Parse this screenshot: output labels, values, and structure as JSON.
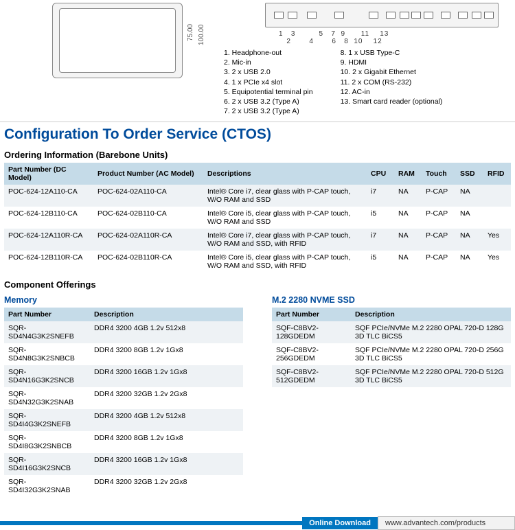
{
  "dimensions": {
    "d1": "75.00",
    "d2": "100.00"
  },
  "portNumbers": {
    "row1": "1   3         5   7  9      11    13",
    "row2": "   2       4       6   8  10    12"
  },
  "portsLeft": [
    "1. Headphone-out",
    "2. Mic-in",
    "3. 2 x USB 2.0",
    "4. 1 x PCIe x4 slot",
    "5. Equipotential terminal pin",
    "6. 2 x USB 3.2 (Type A)",
    "7. 2 x USB 3.2 (Type A)"
  ],
  "portsRight": [
    "8. 1 x USB Type-C",
    "9. HDMI",
    "10. 2 x Gigabit Ethernet",
    "11. 2 x COM (RS-232)",
    "12. AC-in",
    "13. Smart card reader (optional)"
  ],
  "ctosTitle": "Configuration To Order Service (CTOS)",
  "orderingInfoTitle": "Ordering Information (Barebone Units)",
  "mainTable": {
    "headers": [
      "Part Number (DC Model)",
      "Product Number (AC Model)",
      "Descriptions",
      "CPU",
      "RAM",
      "Touch",
      "SSD",
      "RFID"
    ],
    "rows": [
      [
        "POC-624-12A110-CA",
        "POC-624-02A110-CA",
        "Intel® Core i7, clear glass with P-CAP touch, W/O RAM and SSD",
        "i7",
        "NA",
        "P-CAP",
        "NA",
        ""
      ],
      [
        "POC-624-12B110-CA",
        "POC-624-02B110-CA",
        "Intel® Core i5, clear glass with P-CAP touch, W/O RAM and SSD",
        "i5",
        "NA",
        "P-CAP",
        "NA",
        ""
      ],
      [
        "POC-624-12A110R-CA",
        "POC-624-02A110R-CA",
        "Intel® Core i7, clear glass with P-CAP touch, W/O RAM and SSD, with RFID",
        "i7",
        "NA",
        "P-CAP",
        "NA",
        "Yes"
      ],
      [
        "POC-624-12B110R-CA",
        "POC-624-02B110R-CA",
        "Intel® Core i5, clear glass with P-CAP touch, W/O RAM and SSD, with RFID",
        "i5",
        "NA",
        "P-CAP",
        "NA",
        "Yes"
      ]
    ]
  },
  "componentOfferingsTitle": "Component Offerings",
  "memoryTitle": "Memory",
  "memoryTable": {
    "headers": [
      "Part Number",
      "Description"
    ],
    "rows": [
      [
        "SQR-SD4N4G3K2SNEFB",
        "DDR4 3200 4GB 1.2v 512x8"
      ],
      [
        "SQR-SD4N8G3K2SNBCB",
        "DDR4 3200 8GB 1.2v 1Gx8"
      ],
      [
        "SQR-SD4N16G3K2SNCB",
        "DDR4 3200 16GB 1.2v 1Gx8"
      ],
      [
        "SQR-SD4N32G3K2SNAB",
        "DDR4 3200 32GB 1.2v 2Gx8"
      ],
      [
        "SQR-SD4I4G3K2SNEFB",
        "DDR4 3200 4GB 1.2v 512x8"
      ],
      [
        "SQR-SD4I8G3K2SNBCB",
        "DDR4 3200 8GB 1.2v 1Gx8"
      ],
      [
        "SQR-SD4I16G3K2SNCB",
        "DDR4 3200 16GB 1.2v 1Gx8"
      ],
      [
        "SQR-SD4I32G3K2SNAB",
        "DDR4 3200 32GB 1.2v 2Gx8"
      ]
    ]
  },
  "ssdTitle": "M.2 2280 NVME SSD",
  "ssdTable": {
    "headers": [
      "Part Number",
      "Description"
    ],
    "rows": [
      [
        "SQF-C8BV2-128GDEDM",
        "SQF PCIe/NVMe M.2 2280 OPAL 720-D 128G 3D TLC BiCS5"
      ],
      [
        "SQF-C8BV2-256GDEDM",
        "SQF PCIe/NVMe M.2 2280 OPAL 720-D 256G 3D TLC BiCS5"
      ],
      [
        "SQF-C8BV2-512GDEDM",
        "SQF PCIe/NVMe M.2 2280 OPAL 720-D 512G 3D TLC BiCS5"
      ]
    ]
  },
  "footerDownload": "Online Download",
  "footerUrl": "www.advantech.com/products"
}
